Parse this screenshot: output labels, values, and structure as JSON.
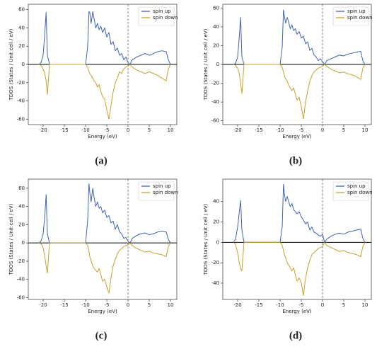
{
  "chart_data": [
    {
      "type": "line",
      "caption": "(a)",
      "xlabel": "Energy (eV)",
      "ylabel": "TDOS (States / Unit cell / eV)",
      "legend": "upper right",
      "x": [
        -21,
        -20.5,
        -20,
        -19.6,
        -19.3,
        -19,
        -18.5,
        -10,
        -9.5,
        -9.2,
        -9,
        -8.7,
        -8.3,
        -8,
        -7.6,
        -7.2,
        -6.8,
        -6.4,
        -6,
        -5.5,
        -5,
        -4.5,
        -4,
        -3.5,
        -3,
        -2.5,
        -2,
        -1.5,
        -1,
        -0.5,
        0,
        0.5,
        1,
        2,
        3,
        4,
        5,
        6,
        7,
        8,
        9,
        9.5,
        10
      ],
      "xlim": [
        -23.5,
        11.5
      ],
      "xticks": [
        -20,
        -15,
        -10,
        -5,
        0,
        5,
        10
      ],
      "ylim": [
        -66,
        66
      ],
      "yticks": [
        -60,
        -40,
        -20,
        0,
        20,
        40,
        60
      ],
      "series": [
        {
          "name": "spin up",
          "color": "#3f63b3",
          "values": [
            0,
            2,
            10,
            35,
            57,
            10,
            0,
            0,
            20,
            58,
            57,
            45,
            58,
            50,
            40,
            45,
            38,
            42,
            35,
            40,
            30,
            35,
            22,
            25,
            15,
            18,
            10,
            12,
            5,
            8,
            2,
            0,
            5,
            8,
            10,
            12,
            10,
            12,
            14,
            15,
            14,
            5,
            0
          ]
        },
        {
          "name": "spin down",
          "color": "#c9a12a",
          "values": [
            0,
            -1,
            -5,
            -10,
            -18,
            -33,
            0,
            0,
            -3,
            -8,
            -10,
            -12,
            -15,
            -18,
            -20,
            -25,
            -22,
            -30,
            -35,
            -38,
            -50,
            -60,
            -45,
            -30,
            -20,
            -15,
            -8,
            -10,
            -5,
            -3,
            -2,
            0,
            -3,
            -6,
            -8,
            -10,
            -8,
            -10,
            -12,
            -15,
            -18,
            -5,
            0
          ]
        }
      ]
    },
    {
      "type": "line",
      "caption": "(b)",
      "xlabel": "Energy (eV)",
      "ylabel": "TDOS (States / Unit cell / eV)",
      "legend": "upper right",
      "x": [
        -21,
        -20.5,
        -20,
        -19.6,
        -19.3,
        -19,
        -18.5,
        -10,
        -9.5,
        -9.2,
        -9,
        -8.7,
        -8.3,
        -8,
        -7.6,
        -7.2,
        -6.8,
        -6.4,
        -6,
        -5.5,
        -5,
        -4.5,
        -4,
        -3.5,
        -3,
        -2.5,
        -2,
        -1.5,
        -1,
        -0.5,
        0,
        0.5,
        1,
        2,
        3,
        4,
        5,
        6,
        7,
        8,
        9,
        9.5,
        10
      ],
      "xlim": [
        -23.5,
        11.5
      ],
      "xticks": [
        -20,
        -15,
        -10,
        -5,
        0,
        5,
        10
      ],
      "ylim": [
        -64,
        64
      ],
      "yticks": [
        -60,
        -40,
        -20,
        0,
        20,
        40,
        60
      ],
      "series": [
        {
          "name": "spin up",
          "color": "#3f63b3",
          "values": [
            0,
            1,
            8,
            30,
            50,
            8,
            0,
            0,
            18,
            58,
            52,
            44,
            50,
            45,
            38,
            42,
            36,
            38,
            32,
            35,
            28,
            30,
            22,
            24,
            15,
            17,
            10,
            8,
            4,
            6,
            3,
            0,
            4,
            6,
            8,
            10,
            9,
            11,
            12,
            13,
            14,
            4,
            0
          ]
        },
        {
          "name": "spin down",
          "color": "#c9a12a",
          "values": [
            0,
            -1,
            -4,
            -10,
            -20,
            -31,
            0,
            0,
            -3,
            -8,
            -12,
            -15,
            -18,
            -22,
            -25,
            -28,
            -25,
            -32,
            -38,
            -35,
            -45,
            -58,
            -40,
            -28,
            -18,
            -12,
            -8,
            -6,
            -4,
            -3,
            -2,
            0,
            -2,
            -5,
            -7,
            -9,
            -8,
            -10,
            -11,
            -13,
            -16,
            -4,
            0
          ]
        }
      ]
    },
    {
      "type": "line",
      "caption": "(c)",
      "xlabel": "Energy (eV)",
      "ylabel": "TDOS (States / Unit cell / eV)",
      "legend": "upper right",
      "x": [
        -21,
        -20.5,
        -20,
        -19.6,
        -19.3,
        -19,
        -18.5,
        -10,
        -9.5,
        -9.2,
        -9,
        -8.7,
        -8.3,
        -8,
        -7.6,
        -7.2,
        -6.8,
        -6.4,
        -6,
        -5.5,
        -5,
        -4.5,
        -4,
        -3.5,
        -3,
        -2.5,
        -2,
        -1.5,
        -1,
        -0.5,
        0,
        0.5,
        1,
        2,
        3,
        4,
        5,
        6,
        7,
        8,
        9,
        9.5,
        10
      ],
      "xlim": [
        -23.5,
        11.5
      ],
      "xticks": [
        -20,
        -15,
        -10,
        -5,
        0,
        5,
        10
      ],
      "ylim": [
        -62,
        70
      ],
      "yticks": [
        -60,
        -40,
        -20,
        0,
        20,
        40,
        60
      ],
      "series": [
        {
          "name": "spin up",
          "color": "#3f63b3",
          "values": [
            0,
            2,
            10,
            30,
            53,
            10,
            0,
            0,
            25,
            65,
            55,
            45,
            60,
            50,
            40,
            45,
            38,
            40,
            33,
            36,
            28,
            30,
            22,
            24,
            15,
            20,
            12,
            10,
            5,
            6,
            2,
            0,
            5,
            8,
            10,
            11,
            9,
            10,
            12,
            13,
            12,
            4,
            0
          ]
        },
        {
          "name": "spin down",
          "color": "#c9a12a",
          "values": [
            0,
            -1,
            -5,
            -15,
            -25,
            -33,
            0,
            0,
            -3,
            -10,
            -15,
            -20,
            -25,
            -28,
            -30,
            -32,
            -28,
            -35,
            -42,
            -40,
            -48,
            -55,
            -38,
            -25,
            -18,
            -12,
            -8,
            -6,
            -4,
            -3,
            -2,
            0,
            -3,
            -6,
            -8,
            -10,
            -9,
            -11,
            -12,
            -13,
            -15,
            -4,
            0
          ]
        }
      ]
    },
    {
      "type": "line",
      "caption": "(d)",
      "xlabel": "Energy (eV)",
      "ylabel": "TDOS (States / Unit cell / eV)",
      "legend": "upper right",
      "x": [
        -21,
        -20.5,
        -20,
        -19.6,
        -19.3,
        -19,
        -18.5,
        -10,
        -9.5,
        -9.2,
        -9,
        -8.7,
        -8.3,
        -8,
        -7.6,
        -7.2,
        -6.8,
        -6.4,
        -6,
        -5.5,
        -5,
        -4.5,
        -4,
        -3.5,
        -3,
        -2.5,
        -2,
        -1.5,
        -1,
        -0.5,
        0,
        0.5,
        1,
        2,
        3,
        4,
        5,
        6,
        7,
        8,
        9,
        9.5,
        10
      ],
      "xlim": [
        -23.5,
        11.5
      ],
      "xticks": [
        -20,
        -15,
        -10,
        -5,
        0,
        5,
        10
      ],
      "ylim": [
        -56,
        62
      ],
      "yticks": [
        -40,
        -20,
        0,
        20,
        40
      ],
      "series": [
        {
          "name": "spin up",
          "color": "#3f63b3",
          "values": [
            0,
            3,
            15,
            30,
            41,
            12,
            0,
            0,
            15,
            57,
            48,
            40,
            45,
            40,
            35,
            38,
            32,
            30,
            28,
            30,
            25,
            22,
            18,
            20,
            12,
            15,
            10,
            9,
            7,
            6,
            8,
            0,
            3,
            6,
            8,
            9,
            8,
            10,
            11,
            12,
            13,
            4,
            0
          ]
        },
        {
          "name": "spin down",
          "color": "#c9a12a",
          "values": [
            0,
            -2,
            -10,
            -20,
            -26,
            -28,
            0,
            0,
            -3,
            -8,
            -12,
            -15,
            -20,
            -22,
            -25,
            -28,
            -25,
            -32,
            -38,
            -35,
            -40,
            -52,
            -35,
            -25,
            -18,
            -12,
            -10,
            -8,
            -6,
            -5,
            -4,
            0,
            -3,
            -5,
            -7,
            -9,
            -8,
            -10,
            -11,
            -12,
            -14,
            -4,
            0
          ]
        }
      ]
    }
  ]
}
